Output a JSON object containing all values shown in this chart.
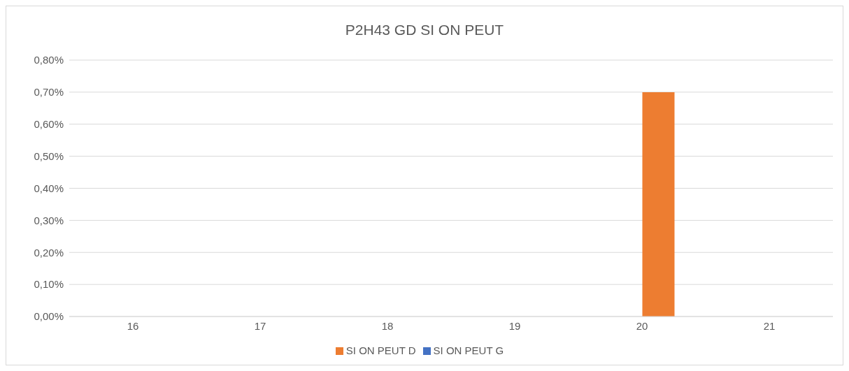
{
  "chart_data": {
    "type": "bar",
    "title": "P2H43 GD SI ON PEUT",
    "categories": [
      "16",
      "17",
      "18",
      "19",
      "20",
      "21"
    ],
    "series": [
      {
        "name": "SI ON PEUT G",
        "color": "#4472c4",
        "values": [
          0,
          0,
          0,
          0,
          0,
          0
        ]
      },
      {
        "name": "SI ON PEUT D",
        "color": "#ed7d31",
        "values": [
          0,
          0,
          0,
          0,
          0.7,
          0
        ]
      }
    ],
    "ylim": [
      0,
      0.8
    ],
    "yticks": [
      {
        "value": 0,
        "label": "0,00%"
      },
      {
        "value": 0.1,
        "label": "0,10%"
      },
      {
        "value": 0.2,
        "label": "0,20%"
      },
      {
        "value": 0.3,
        "label": "0,30%"
      },
      {
        "value": 0.4,
        "label": "0,40%"
      },
      {
        "value": 0.5,
        "label": "0,50%"
      },
      {
        "value": 0.6,
        "label": "0,60%"
      },
      {
        "value": 0.7,
        "label": "0,70%"
      },
      {
        "value": 0.8,
        "label": "0,80%"
      }
    ],
    "grid": "y",
    "legend": "bottom"
  }
}
